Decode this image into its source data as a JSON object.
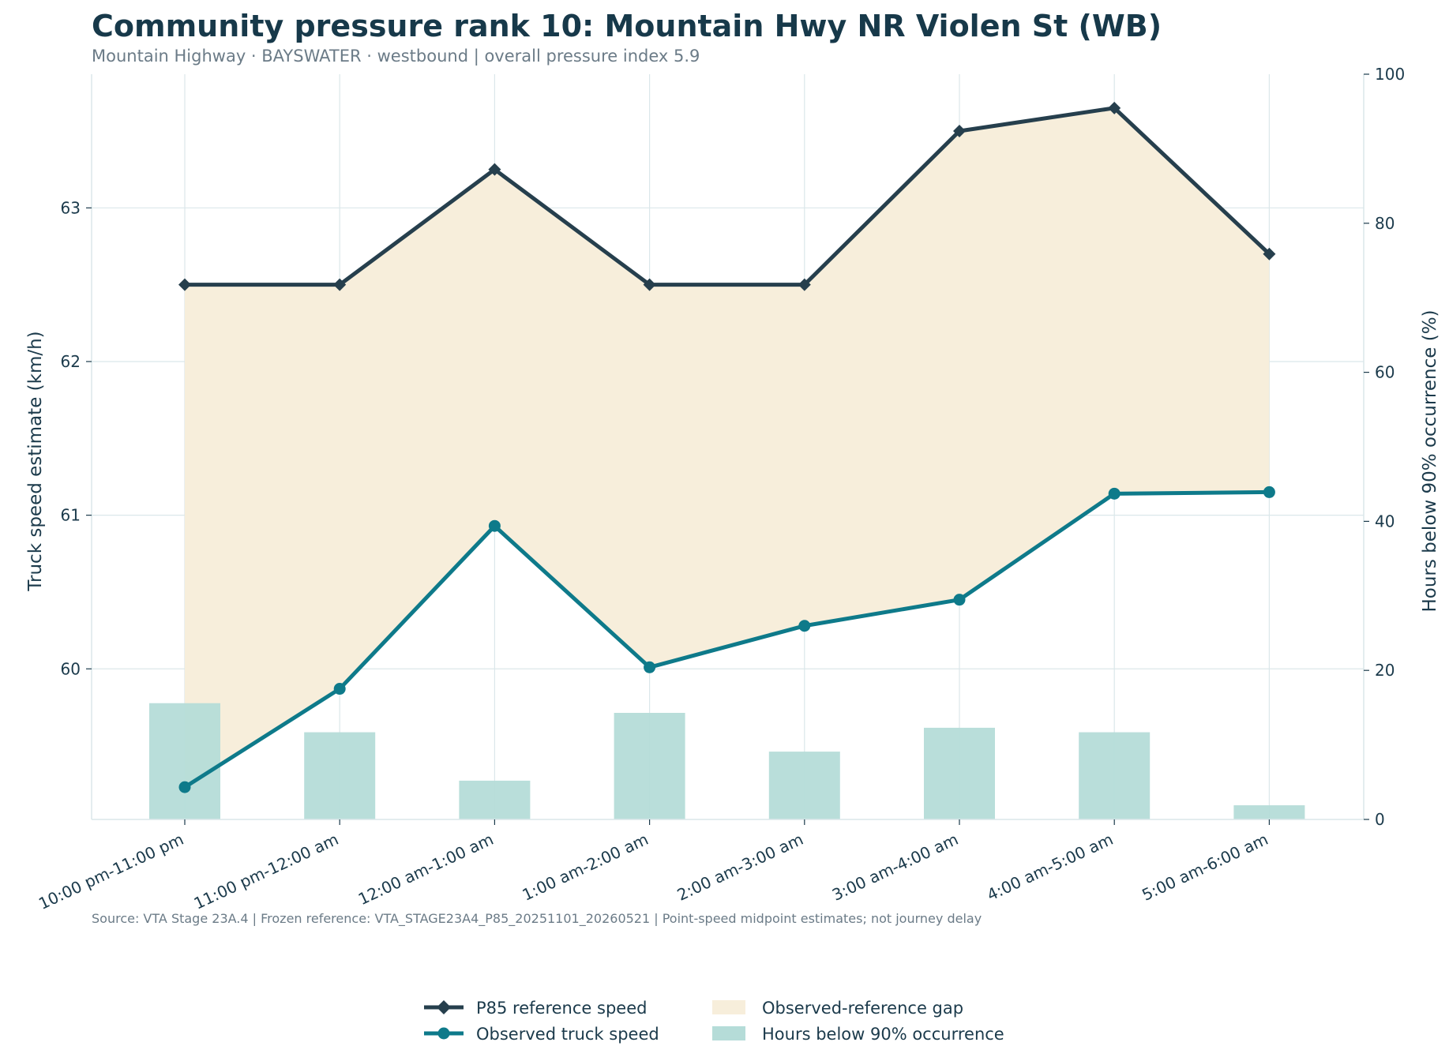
{
  "chart_data": {
    "type": "line",
    "title": "Community pressure rank 10: Mountain Hwy NR Violen St (WB)",
    "subtitle": "Mountain Highway · BAYSWATER · westbound | overall pressure index 5.9",
    "categories": [
      "10:00 pm-11:00 pm",
      "11:00 pm-12:00 am",
      "12:00 am-1:00 am",
      "1:00 am-2:00 am",
      "2:00 am-3:00 am",
      "3:00 am-4:00 am",
      "4:00 am-5:00 am",
      "5:00 am-6:00 am"
    ],
    "series": [
      {
        "name": "P85 reference speed",
        "type": "line",
        "axis": "left",
        "values": [
          62.5,
          62.5,
          63.25,
          62.5,
          62.5,
          63.5,
          63.65,
          62.7
        ]
      },
      {
        "name": "Observed truck speed",
        "type": "line",
        "axis": "left",
        "values": [
          59.23,
          59.87,
          60.93,
          60.01,
          60.28,
          60.45,
          61.14,
          61.15
        ]
      },
      {
        "name": "Hours below 90% occurrence",
        "type": "bar",
        "axis": "right",
        "values": [
          15.6,
          11.7,
          5.2,
          14.3,
          9.1,
          12.3,
          11.7,
          1.9
        ]
      }
    ],
    "fill_between": {
      "name": "Observed-reference gap",
      "upper": "P85 reference speed",
      "lower": "Observed truck speed"
    },
    "ylabel": "Truck speed estimate (km/h)",
    "ylim": [
      59.02,
      63.87
    ],
    "yticks": [
      60,
      61,
      62,
      63
    ],
    "y2label": "Hours below 90% occurrence (%)",
    "y2lim": [
      0,
      100
    ],
    "y2ticks": [
      0,
      20,
      40,
      60,
      80,
      100
    ],
    "grid": true,
    "legend_placement": "bottom-center",
    "source_note": "Source: VTA Stage 23A.4 | Frozen reference: VTA_STAGE23A4_P85_20251101_20260521 | Point-speed midpoint estimates; not journey delay",
    "colors": {
      "reference": "#263f4d",
      "observed": "#0e7a8a",
      "gap_fill": "#f7eedb",
      "bars": "#b5dcd8",
      "grid": "#dbe7ea",
      "title": "#17394a",
      "muted": "#6b7b87"
    }
  }
}
